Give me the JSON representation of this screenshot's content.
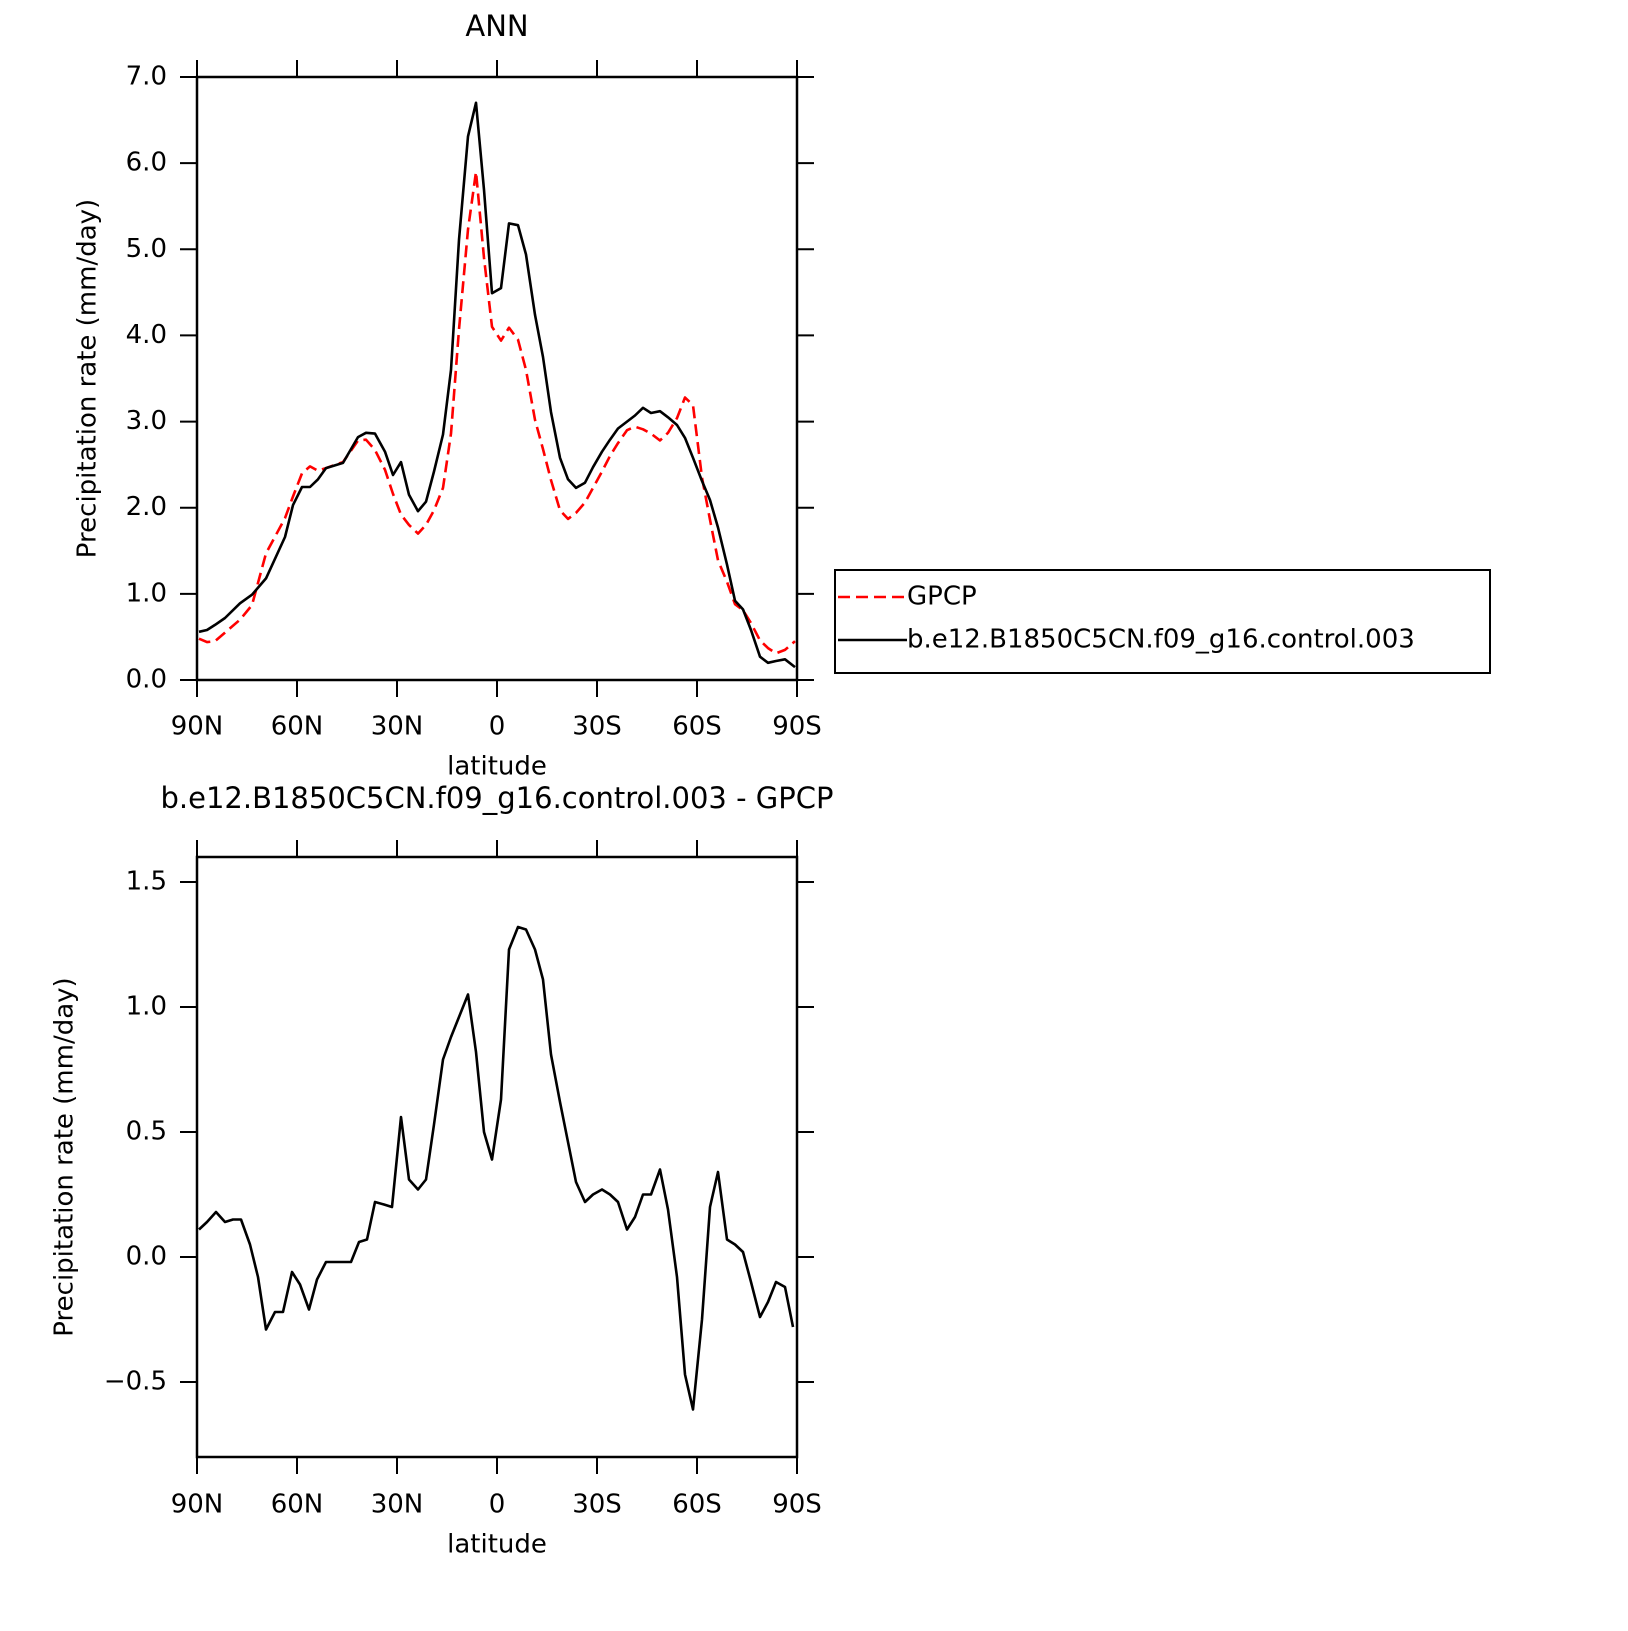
{
  "chart_data": [
    {
      "type": "line",
      "title": "ANN",
      "xlabel": "latitude",
      "ylabel": "Precipitation rate (mm/day)",
      "x": [
        89.4,
        87,
        84.6,
        81.6,
        77.1,
        73.5,
        69.3,
        63.6,
        61.2,
        58.5,
        56.1,
        53.7,
        51.3,
        46.2,
        41.7,
        39.3,
        36.6,
        33.6,
        31.2,
        28.8,
        26.4,
        23.7,
        21.3,
        18.9,
        16.2,
        13.8,
        11.4,
        8.7,
        6.3,
        3.9,
        1.5,
        -1.2,
        -3.6,
        -6.3,
        -8.7,
        -11.4,
        -13.8,
        -16.2,
        -18.9,
        -21.3,
        -23.7,
        -26.4,
        -28.8,
        -31.5,
        -33.9,
        -36.3,
        -39,
        -41.4,
        -43.8,
        -46.2,
        -48.9,
        -51.3,
        -54,
        -56.4,
        -58.8,
        -61.5,
        -63.9,
        -66.3,
        -69,
        -71.4,
        -73.8,
        -76.2,
        -78.9,
        -81.3,
        -83.7,
        -86.4,
        -89.4
      ],
      "series": [
        {
          "name": "GPCP",
          "color": "#ff0000",
          "dashed": true,
          "values": [
            0.48,
            0.44,
            0.45,
            0.55,
            0.7,
            0.87,
            1.47,
            1.88,
            2.13,
            2.4,
            2.48,
            2.43,
            2.46,
            2.53,
            2.78,
            2.79,
            2.67,
            2.44,
            2.16,
            1.92,
            1.8,
            1.7,
            1.8,
            1.97,
            2.23,
            2.86,
            4.07,
            5.23,
            5.9,
            4.9,
            4.1,
            3.94,
            4.09,
            3.95,
            3.6,
            3.02,
            2.68,
            2.32,
            1.97,
            1.87,
            1.94,
            2.06,
            2.23,
            2.42,
            2.6,
            2.75,
            2.9,
            2.94,
            2.91,
            2.86,
            2.78,
            2.87,
            3.04,
            3.28,
            3.19,
            2.35,
            1.86,
            1.39,
            1.14,
            0.88,
            0.81,
            0.66,
            0.46,
            0.37,
            0.31,
            0.35,
            0.45
          ]
        },
        {
          "name": "b.e12.B1850C5CN.f09_g16.control.003",
          "color": "#000000",
          "dashed": false,
          "values": [
            0.56,
            0.58,
            0.64,
            0.72,
            0.89,
            0.99,
            1.18,
            1.66,
            2.03,
            2.24,
            2.24,
            2.33,
            2.46,
            2.52,
            2.82,
            2.87,
            2.86,
            2.65,
            2.38,
            2.53,
            2.15,
            1.96,
            2.07,
            2.42,
            2.85,
            3.6,
            5.11,
            6.31,
            6.7,
            5.69,
            4.49,
            4.55,
            5.3,
            5.28,
            4.94,
            4.24,
            3.75,
            3.11,
            2.58,
            2.33,
            2.23,
            2.29,
            2.47,
            2.65,
            2.79,
            2.92,
            3.0,
            3.07,
            3.16,
            3.1,
            3.12,
            3.05,
            2.96,
            2.81,
            2.58,
            2.31,
            2.09,
            1.77,
            1.34,
            0.92,
            0.82,
            0.58,
            0.27,
            0.2,
            0.22,
            0.24,
            0.15
          ]
        }
      ],
      "xlim": [
        90,
        -90
      ],
      "xticks": [
        {
          "value": 90,
          "label": "90N"
        },
        {
          "value": 60,
          "label": "60N"
        },
        {
          "value": 30,
          "label": "30N"
        },
        0,
        {
          "value": -30,
          "label": "30S"
        },
        {
          "value": -60,
          "label": "60S"
        },
        {
          "value": -90,
          "label": "90S"
        }
      ],
      "ylim": [
        0,
        7
      ],
      "yticks": [
        {
          "value": 0,
          "label": "0.0"
        },
        {
          "value": 1,
          "label": "1.0"
        },
        {
          "value": 2,
          "label": "2.0"
        },
        {
          "value": 3,
          "label": "3.0"
        },
        {
          "value": 4,
          "label": "4.0"
        },
        {
          "value": 5,
          "label": "5.0"
        },
        {
          "value": 6,
          "label": "6.0"
        },
        {
          "value": 7,
          "label": "7.0"
        }
      ],
      "legend": "right"
    },
    {
      "type": "line",
      "title": "b.e12.B1850C5CN.f09_g16.control.003 - GPCP",
      "xlabel": "latitude",
      "ylabel": "Precipitation rate (mm/day)",
      "x": [
        89.4,
        87,
        84.3,
        81.6,
        79.2,
        76.8,
        74.1,
        71.7,
        69.3,
        66.6,
        64.2,
        61.5,
        59.1,
        56.4,
        54,
        51.3,
        48.9,
        46.2,
        43.8,
        41.4,
        39,
        36.6,
        33.9,
        31.5,
        28.8,
        26.4,
        23.7,
        21.3,
        18.9,
        16.2,
        13.8,
        11.4,
        8.7,
        6.3,
        3.9,
        1.5,
        -1.2,
        -3.6,
        -6.3,
        -8.7,
        -11.4,
        -13.8,
        -16.2,
        -18.9,
        -21.3,
        -23.7,
        -26.4,
        -28.8,
        -31.5,
        -33.9,
        -36.3,
        -39,
        -41.4,
        -43.8,
        -46.2,
        -48.9,
        -51.3,
        -54,
        -56.4,
        -58.8,
        -61.5,
        -63.9,
        -66.3,
        -69,
        -71.4,
        -73.8,
        -76.2,
        -78.9,
        -81.3,
        -83.7,
        -86.4,
        -88.8
      ],
      "values": [
        0.11,
        0.14,
        0.18,
        0.14,
        0.15,
        0.15,
        0.05,
        -0.08,
        -0.29,
        -0.22,
        -0.22,
        -0.06,
        -0.11,
        -0.21,
        -0.09,
        -0.02,
        -0.02,
        -0.02,
        -0.02,
        0.06,
        0.07,
        0.22,
        0.21,
        0.2,
        0.56,
        0.31,
        0.27,
        0.31,
        0.53,
        0.79,
        0.88,
        0.96,
        1.05,
        0.82,
        0.5,
        0.39,
        0.63,
        1.23,
        1.32,
        1.31,
        1.23,
        1.11,
        0.81,
        0.62,
        0.46,
        0.3,
        0.22,
        0.25,
        0.27,
        0.25,
        0.22,
        0.11,
        0.16,
        0.25,
        0.25,
        0.35,
        0.19,
        -0.08,
        -0.47,
        -0.61,
        -0.25,
        0.2,
        0.34,
        0.07,
        0.05,
        0.02,
        -0.1,
        -0.24,
        -0.18,
        -0.1,
        -0.12,
        -0.28
      ],
      "color": "#000000",
      "xlim": [
        90,
        -90
      ],
      "xticks": [
        {
          "value": 90,
          "label": "90N"
        },
        {
          "value": 60,
          "label": "60N"
        },
        {
          "value": 30,
          "label": "30N"
        },
        0,
        {
          "value": -30,
          "label": "30S"
        },
        {
          "value": -60,
          "label": "60S"
        },
        {
          "value": -90,
          "label": "90S"
        }
      ],
      "ylim": [
        -0.8,
        1.6
      ],
      "yticks": [
        {
          "value": -0.5,
          "label": "−0.5"
        },
        {
          "value": 0,
          "label": "0.0"
        },
        0.5,
        {
          "value": 1,
          "label": "1.0"
        },
        1.5
      ]
    }
  ]
}
